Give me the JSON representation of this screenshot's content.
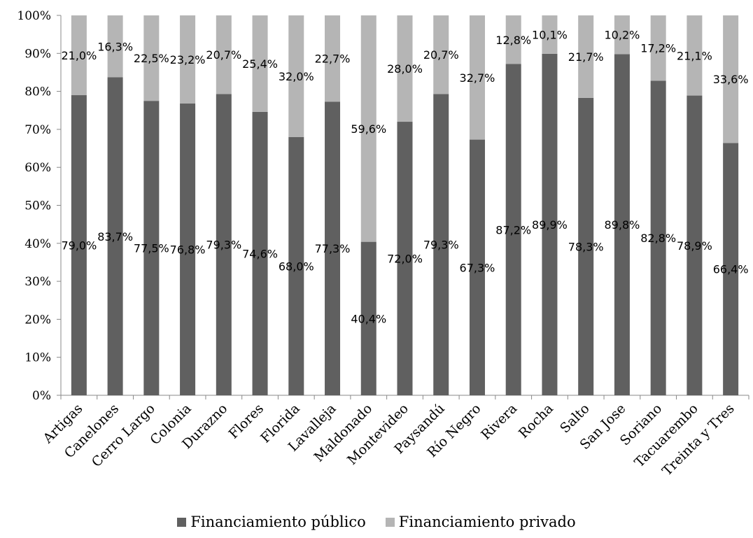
{
  "chart_data": {
    "type": "bar",
    "stacked": "percent",
    "categories": [
      "Artigas",
      "Canelones",
      "Cerro Largo",
      "Colonia",
      "Durazno",
      "Flores",
      "Florida",
      "Lavalleja",
      "Maldonado",
      "Montevideo",
      "Paysandú",
      "Río Negro",
      "Rivera",
      "Rocha",
      "Salto",
      "San Jose",
      "Soriano",
      "Tacuarembo",
      "Treinta y Tres"
    ],
    "series": [
      {
        "name": "Financiamiento público",
        "color": "#606060",
        "values": [
          79.0,
          83.7,
          77.5,
          76.8,
          79.3,
          74.6,
          68.0,
          77.3,
          40.4,
          72.0,
          79.3,
          67.3,
          87.2,
          89.9,
          78.3,
          89.8,
          82.8,
          78.9,
          66.4
        ],
        "labels": [
          "79,0%",
          "83,7%",
          "77,5%",
          "76,8%",
          "79,3%",
          "74,6%",
          "68,0%",
          "77,3%",
          "40,4%",
          "72,0%",
          "79,3%",
          "67,3%",
          "87,2%",
          "89,9%",
          "78,3%",
          "89,8%",
          "82,8%",
          "78,9%",
          "66,4%"
        ]
      },
      {
        "name": "Financiamiento privado",
        "color": "#b5b5b5",
        "values": [
          21.0,
          16.3,
          22.5,
          23.2,
          20.7,
          25.4,
          32.0,
          22.7,
          59.6,
          28.0,
          20.7,
          32.7,
          12.8,
          10.1,
          21.7,
          10.2,
          17.2,
          21.1,
          33.6
        ],
        "labels": [
          "21,0%",
          "16,3%",
          "22,5%",
          "23,2%",
          "20,7%",
          "25,4%",
          "32,0%",
          "22,7%",
          "59,6%",
          "28,0%",
          "20,7%",
          "32,7%",
          "12,8%",
          "10,1%",
          "21,7%",
          "10,2%",
          "17,2%",
          "21,1%",
          "33,6%"
        ]
      }
    ],
    "yticks": [
      "0%",
      "10%",
      "20%",
      "30%",
      "40%",
      "50%",
      "60%",
      "70%",
      "80%",
      "90%",
      "100%"
    ],
    "ylim": [
      0,
      100
    ],
    "grid": false,
    "legend_position": "bottom"
  }
}
